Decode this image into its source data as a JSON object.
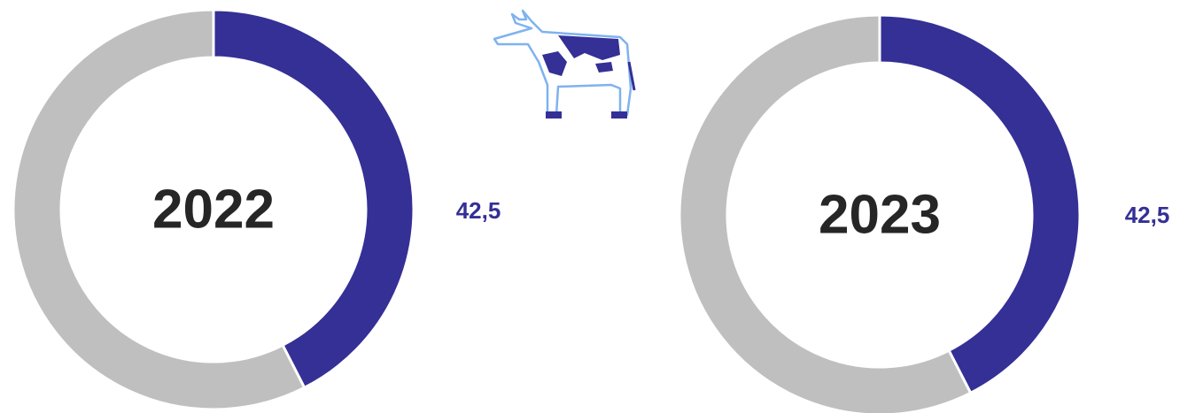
{
  "chart_data": [
    {
      "type": "pie",
      "title": "2022",
      "values": [
        42.5,
        57.5
      ],
      "value_labels": [
        "42,5",
        null
      ],
      "colors": [
        "#343096",
        "#bfbfbf"
      ]
    },
    {
      "type": "pie",
      "title": "2023",
      "values": [
        42.5,
        57.5
      ],
      "value_labels": [
        "42,5",
        null
      ],
      "colors": [
        "#343096",
        "#bfbfbf"
      ]
    }
  ]
}
